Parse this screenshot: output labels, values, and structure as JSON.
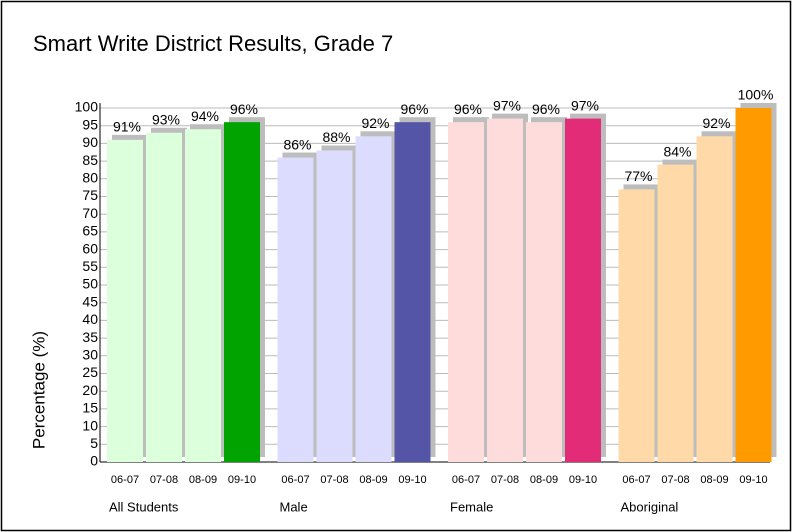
{
  "chart_data": {
    "type": "bar",
    "title": "Smart Write District Results, Grade 7",
    "y_label": "Percentage (%)",
    "groups": [
      {
        "name": "All Students",
        "categories": [
          "06-07",
          "07-08",
          "08-09",
          "09-10"
        ],
        "values": [
          91,
          93,
          94,
          96
        ],
        "value_labels": [
          "91%",
          "93%",
          "94%",
          "96%"
        ],
        "colors": [
          "#dcffdc",
          "#dcffdc",
          "#dcffdc",
          "#00a300"
        ]
      },
      {
        "name": "Male",
        "categories": [
          "06-07",
          "07-08",
          "08-09",
          "09-10"
        ],
        "values": [
          86,
          88,
          92,
          96
        ],
        "value_labels": [
          "86%",
          "88%",
          "92%",
          "96%"
        ],
        "colors": [
          "#dcdcff",
          "#dcdcff",
          "#dcdcff",
          "#5555a8"
        ]
      },
      {
        "name": "Female",
        "categories": [
          "06-07",
          "07-08",
          "08-09",
          "09-10"
        ],
        "values": [
          96,
          97,
          96,
          97
        ],
        "value_labels": [
          "96%",
          "97%",
          "96%",
          "97%"
        ],
        "colors": [
          "#ffdcdc",
          "#ffdcdc",
          "#ffdcdc",
          "#e32c78"
        ]
      },
      {
        "name": "Aboriginal",
        "categories": [
          "06-07",
          "07-08",
          "08-09",
          "09-10"
        ],
        "values": [
          77,
          84,
          92,
          100
        ],
        "value_labels": [
          "77%",
          "84%",
          "92%",
          "100%"
        ],
        "colors": [
          "#ffdaa8",
          "#ffdaa8",
          "#ffdaa8",
          "#ff9a00"
        ]
      }
    ],
    "ylim": [
      0,
      100
    ],
    "yticks": [
      0,
      5,
      10,
      15,
      20,
      25,
      30,
      35,
      40,
      45,
      50,
      55,
      60,
      65,
      70,
      75,
      80,
      85,
      90,
      95,
      100
    ],
    "grid": true
  }
}
